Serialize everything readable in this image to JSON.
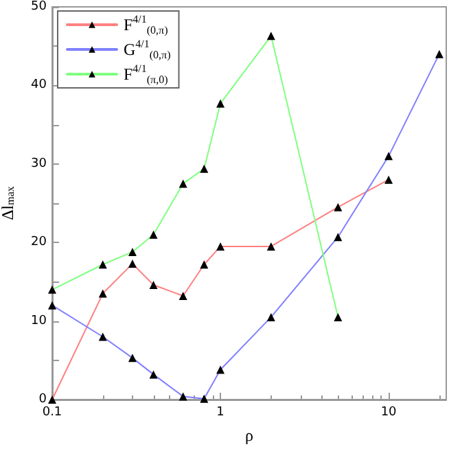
{
  "chart_data": {
    "type": "line",
    "xlabel": "ρ",
    "ylabel": "Δl$_{max}$",
    "x": [
      0.1,
      0.2,
      0.3,
      0.4,
      0.6,
      0.8,
      1,
      2,
      5,
      10,
      20
    ],
    "series": [
      {
        "name": "F$^{4/1}$$_{(0,π)}$",
        "color": "#ff8080",
        "values": [
          0,
          13.5,
          17.3,
          14.6,
          13.2,
          17.2,
          19.5,
          19.5,
          24.5,
          28,
          null
        ]
      },
      {
        "name": "G$^{4/1}$$_{(0,π)}$",
        "color": "#8080ff",
        "values": [
          12,
          8,
          5.3,
          3.2,
          0.4,
          0.1,
          3.8,
          10.5,
          20.7,
          31,
          44
        ]
      },
      {
        "name": "F$^{4/1}$$_{(π,0)}$",
        "color": "#80ff80",
        "values": [
          14,
          17.2,
          18.8,
          21,
          27.5,
          29.4,
          37.7,
          46.3,
          10.5,
          null,
          null
        ]
      }
    ],
    "log": "x",
    "xlim": [
      0.1,
      22
    ],
    "xticks": [
      0.1,
      1,
      10
    ],
    "ylim": [
      0,
      50
    ],
    "yticks": [
      0,
      10,
      20,
      30,
      40,
      50
    ],
    "grid": false,
    "legend": "top left",
    "marker": "triangle",
    "line_style": "solid"
  }
}
